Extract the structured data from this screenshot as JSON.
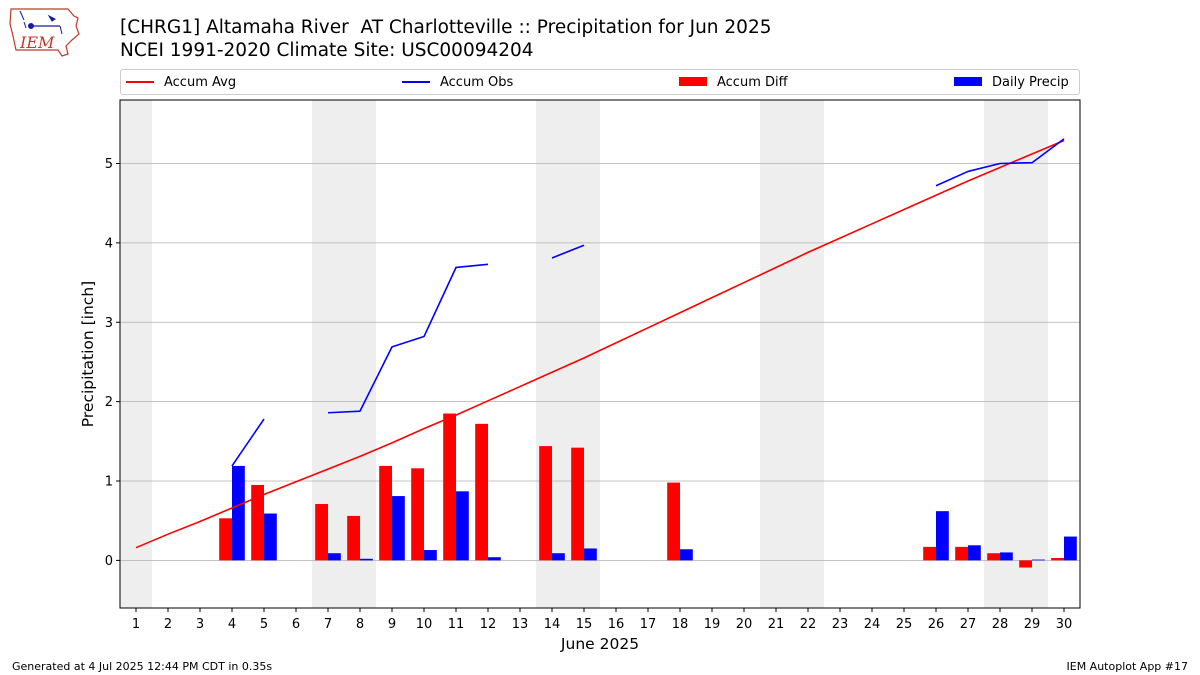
{
  "header": {
    "title_line1": "[CHRG1] Altamaha River  AT Charlotteville :: Precipitation for Jun 2025",
    "title_line2": "NCEI 1991-2020 Climate Site: USC00094204",
    "logo_text": "IEM"
  },
  "legend": {
    "accum_avg": "Accum Avg",
    "accum_obs": "Accum Obs",
    "accum_diff": "Accum Diff",
    "daily_precip": "Daily Precip",
    "placement": "top, spanning full width"
  },
  "footer": {
    "generated": "Generated at 4 Jul 2025 12:44 PM CDT in 0.35s",
    "app": "IEM Autoplot App #17"
  },
  "colors": {
    "accum_avg": "#ff0000",
    "accum_obs": "#0000ff",
    "accum_diff": "#ff0000",
    "daily_precip": "#0000ff",
    "weekend_shade": "#eeeeee",
    "grid": "#b0b0b0"
  },
  "chart_data": {
    "type": "bar",
    "xlabel": "June 2025",
    "ylabel": "Precipitation [inch]",
    "xlim": [
      0.5,
      30.5
    ],
    "ylim": [
      -0.6,
      5.8
    ],
    "yticks": [
      0,
      1,
      2,
      3,
      4,
      5
    ],
    "xticks": [
      1,
      2,
      3,
      4,
      5,
      6,
      7,
      8,
      9,
      10,
      11,
      12,
      13,
      14,
      15,
      16,
      17,
      18,
      19,
      20,
      21,
      22,
      23,
      24,
      25,
      26,
      27,
      28,
      29,
      30
    ],
    "grid": "horizontal",
    "weekend_shading": [
      [
        0.5,
        1.5
      ],
      [
        6.5,
        8.5
      ],
      [
        13.5,
        15.5
      ],
      [
        20.5,
        22.5
      ],
      [
        27.5,
        29.5
      ]
    ],
    "days": [
      1,
      2,
      3,
      4,
      5,
      6,
      7,
      8,
      9,
      10,
      11,
      12,
      13,
      14,
      15,
      16,
      17,
      18,
      19,
      20,
      21,
      22,
      23,
      24,
      25,
      26,
      27,
      28,
      29,
      30
    ],
    "series": [
      {
        "name": "Accum Avg",
        "kind": "line",
        "values": [
          0.16,
          0.33,
          0.49,
          0.66,
          0.83,
          0.99,
          1.15,
          1.31,
          1.48,
          1.66,
          1.83,
          2.01,
          2.19,
          2.37,
          2.55,
          2.74,
          2.93,
          3.12,
          3.31,
          3.5,
          3.69,
          3.88,
          4.06,
          4.24,
          4.42,
          4.6,
          4.78,
          4.95,
          5.12,
          5.29
        ]
      },
      {
        "name": "Accum Obs",
        "kind": "line",
        "values": [
          null,
          null,
          null,
          1.19,
          1.78,
          null,
          1.86,
          1.88,
          2.69,
          2.82,
          3.69,
          3.73,
          null,
          3.81,
          3.97,
          null,
          null,
          null,
          null,
          null,
          null,
          null,
          null,
          null,
          null,
          4.72,
          4.9,
          5.0,
          5.01,
          5.31
        ]
      },
      {
        "name": "Accum Diff",
        "kind": "bar",
        "values": [
          null,
          null,
          null,
          0.53,
          0.95,
          null,
          0.71,
          0.56,
          1.19,
          1.16,
          1.85,
          1.72,
          null,
          1.44,
          1.42,
          null,
          null,
          0.98,
          null,
          null,
          null,
          null,
          null,
          null,
          null,
          0.17,
          0.17,
          0.09,
          -0.09,
          0.03
        ]
      },
      {
        "name": "Daily Precip",
        "kind": "bar",
        "values": [
          null,
          null,
          null,
          1.19,
          0.59,
          null,
          0.09,
          0.02,
          0.81,
          0.13,
          0.87,
          0.04,
          null,
          0.09,
          0.15,
          null,
          null,
          0.14,
          null,
          null,
          null,
          null,
          null,
          null,
          null,
          0.62,
          0.19,
          0.1,
          0.01,
          0.3
        ]
      }
    ]
  }
}
